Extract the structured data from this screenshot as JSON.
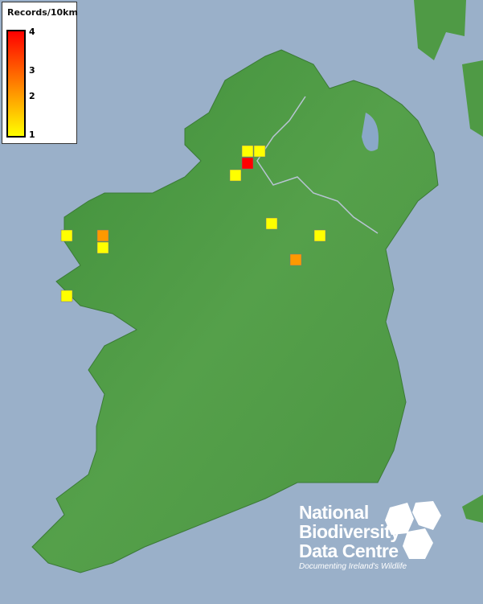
{
  "legend": {
    "title": "Records/10km",
    "ticks": [
      "4",
      "3",
      "2",
      "1"
    ],
    "colors": {
      "low": "#ffff00",
      "mid": "#ff9900",
      "high": "#ff0000"
    }
  },
  "records": [
    1,
    1,
    4,
    1,
    1,
    1,
    2,
    1,
    2,
    1,
    1
  ],
  "colors": {
    "sea": "#9ab0c9",
    "land": "#4f9a45",
    "borders": "#b8c4d4"
  },
  "logo": {
    "line1": "National",
    "line2": "Biodiversity",
    "line3": "Data Centre",
    "tagline": "Documenting Ireland's Wildlife"
  }
}
